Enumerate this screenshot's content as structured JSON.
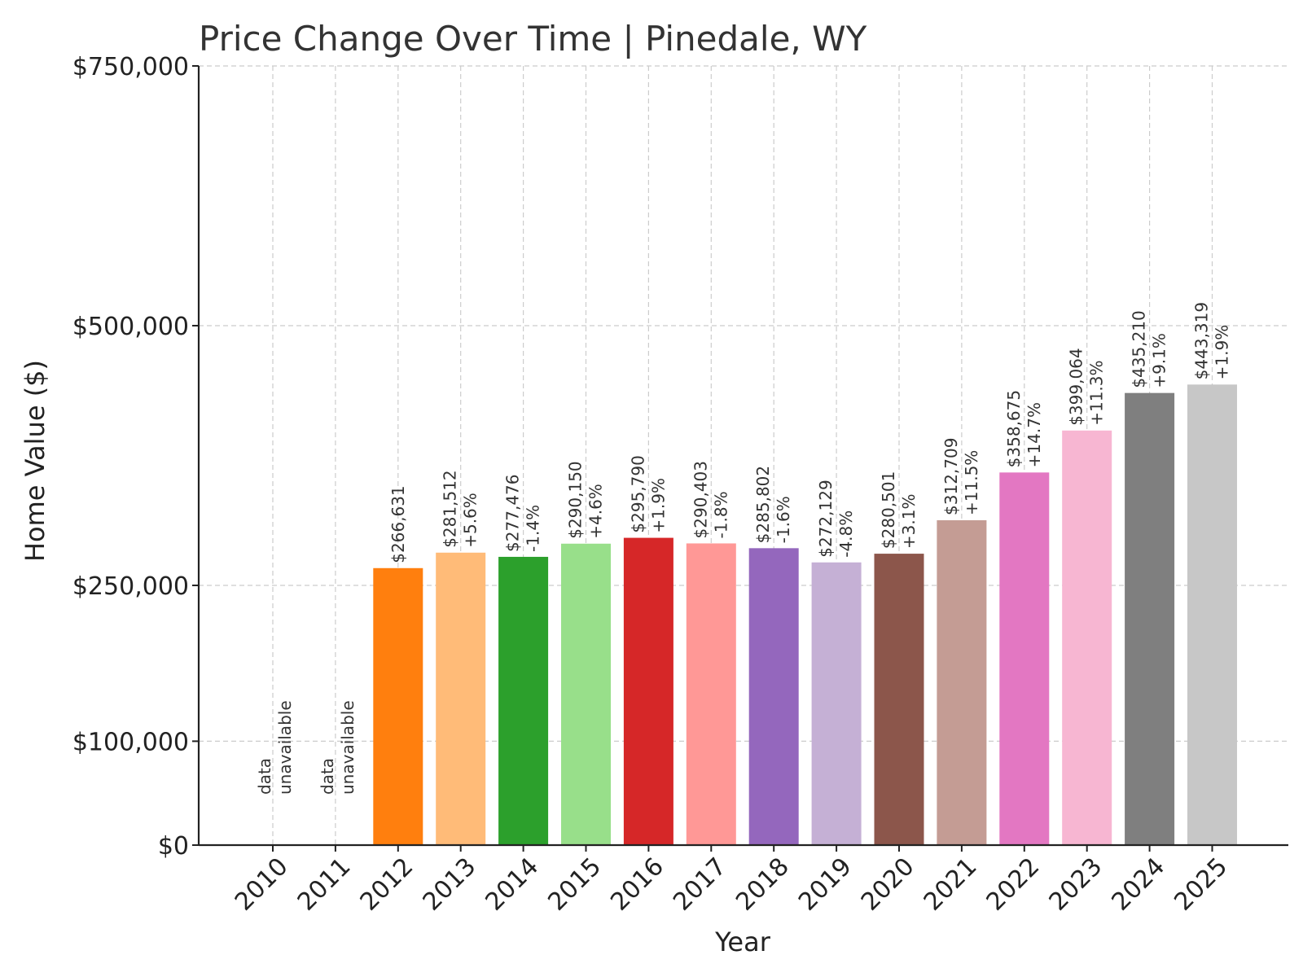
{
  "chart_data": {
    "type": "bar",
    "title": "Price Change Over Time | Pinedale, WY",
    "xlabel": "Year",
    "ylabel": "Home Value ($)",
    "ylim": [
      0,
      750000
    ],
    "yticks": [
      0,
      100000,
      250000,
      500000,
      750000
    ],
    "ytick_labels": [
      "$0",
      "$100,000",
      "$250,000",
      "$500,000",
      "$750,000"
    ],
    "grid": true,
    "categories": [
      "2010",
      "2011",
      "2012",
      "2013",
      "2014",
      "2015",
      "2016",
      "2017",
      "2018",
      "2019",
      "2020",
      "2021",
      "2022",
      "2023",
      "2024",
      "2025"
    ],
    "values": [
      null,
      null,
      266631,
      281512,
      277476,
      290150,
      295790,
      290403,
      285802,
      272129,
      280501,
      312709,
      358675,
      399064,
      435210,
      443319
    ],
    "value_labels": [
      "",
      "",
      "$266,631",
      "$281,512",
      "$277,476",
      "$290,150",
      "$295,790",
      "$290,403",
      "$285,802",
      "$272,129",
      "$280,501",
      "$312,709",
      "$358,675",
      "$399,064",
      "$435,210",
      "$443,319"
    ],
    "change_labels": [
      "",
      "",
      "",
      "+5.6%",
      "-1.4%",
      "+4.6%",
      "+1.9%",
      "-1.8%",
      "-1.6%",
      "-4.8%",
      "+3.1%",
      "+11.5%",
      "+14.7%",
      "+11.3%",
      "+9.1%",
      "+1.9%"
    ],
    "unavailable_label": [
      "data",
      "unavailable"
    ],
    "colors": [
      "#1f77b4",
      "#aec7e8",
      "#ff7f0e",
      "#ffbb78",
      "#2ca02c",
      "#98df8a",
      "#d62728",
      "#ff9896",
      "#9467bd",
      "#c5b0d5",
      "#8c564b",
      "#c49c94",
      "#e377c2",
      "#f7b6d2",
      "#7f7f7f",
      "#c7c7c7"
    ]
  }
}
